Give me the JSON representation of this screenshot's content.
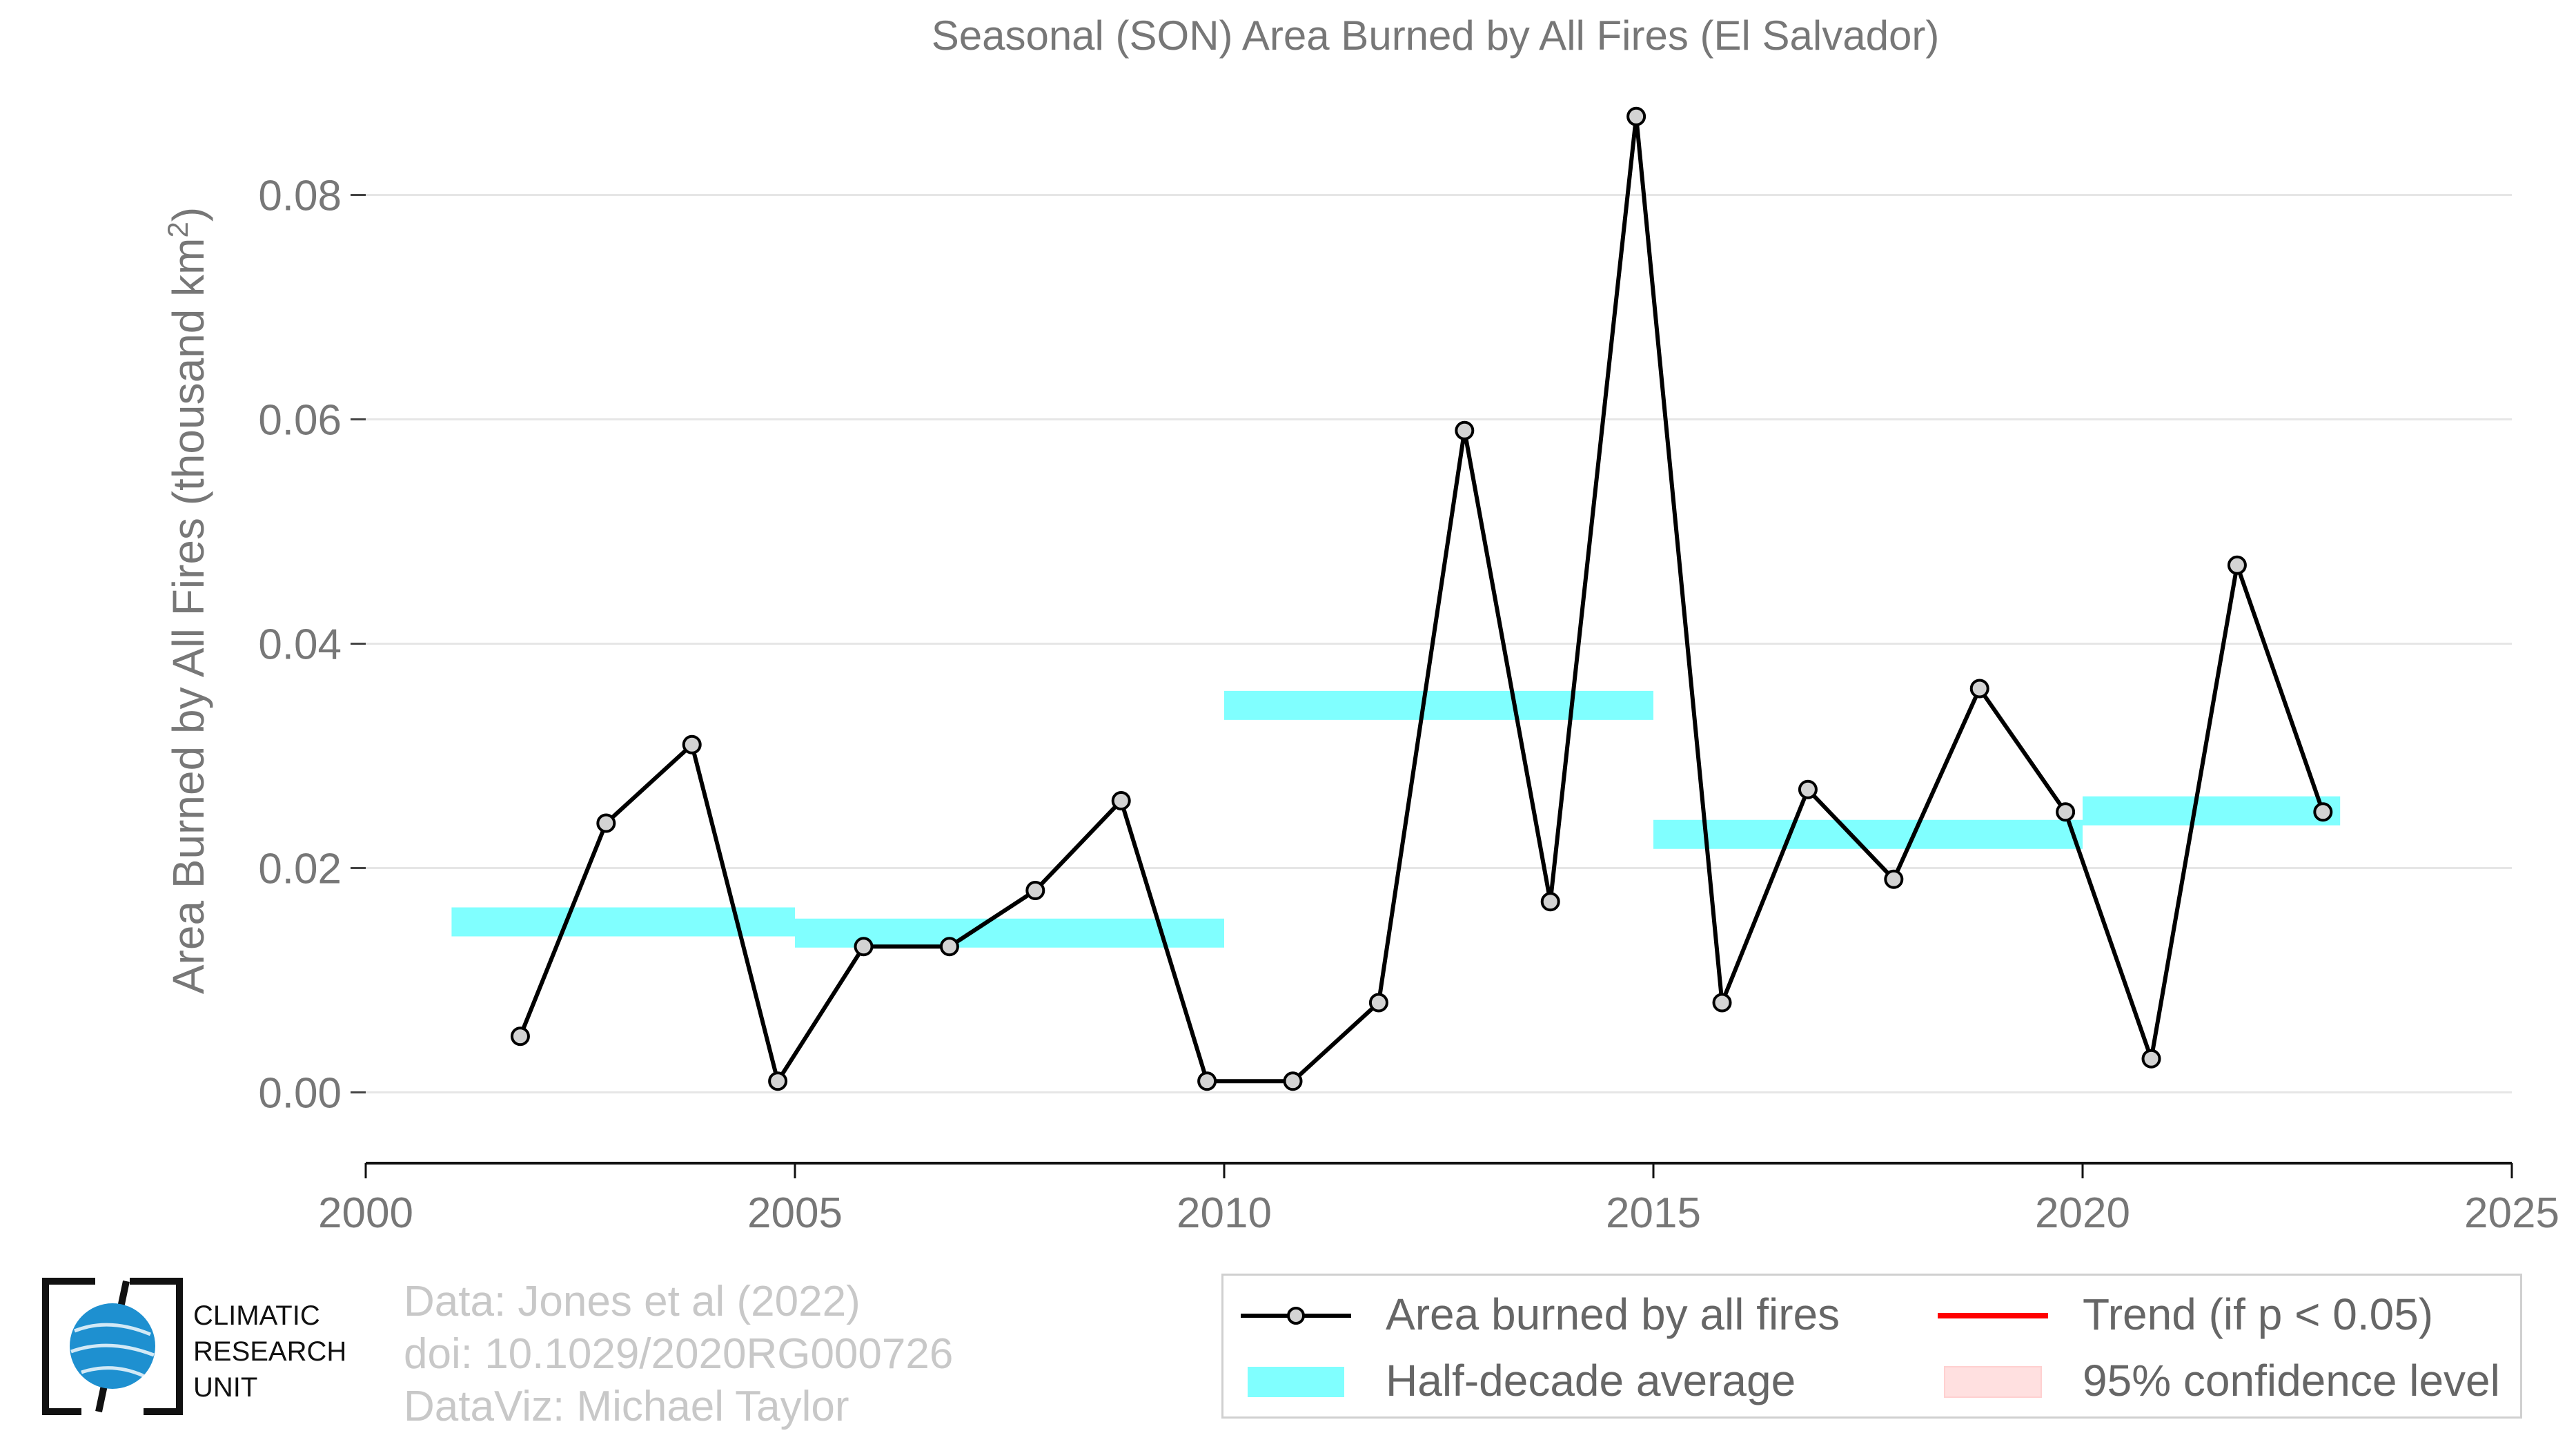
{
  "chart_data": {
    "type": "line",
    "title": "Seasonal (SON) Area Burned by All Fires (El Salvador)",
    "ylabel": "Area Burned by All Fires (thousand km²)",
    "xlabel": "",
    "xlim": [
      2000,
      2025
    ],
    "ylim": [
      -0.006,
      0.09
    ],
    "x_ticks": [
      2000,
      2005,
      2010,
      2015,
      2020,
      2025
    ],
    "y_ticks": [
      0.0,
      0.02,
      0.04,
      0.06,
      0.08
    ],
    "y_tick_labels": [
      "0.00",
      "0.02",
      "0.04",
      "0.06",
      "0.08"
    ],
    "grid": true,
    "series": [
      {
        "name": "Area burned by all fires",
        "color": "#000000",
        "marker_fill": "#d3d3d3",
        "x": [
          2001.8,
          2002.8,
          2003.8,
          2004.8,
          2005.8,
          2006.8,
          2007.8,
          2008.8,
          2009.8,
          2010.8,
          2011.8,
          2012.8,
          2013.8,
          2014.8,
          2015.8,
          2016.8,
          2017.8,
          2018.8,
          2019.8,
          2020.8,
          2021.8,
          2022.8
        ],
        "y": [
          0.005,
          0.024,
          0.031,
          0.001,
          0.013,
          0.013,
          0.018,
          0.026,
          0.001,
          0.001,
          0.008,
          0.059,
          0.017,
          0.087,
          0.008,
          0.027,
          0.019,
          0.036,
          0.025,
          0.003,
          0.047,
          0.025
        ]
      }
    ],
    "half_decade_average": {
      "name": "Half-decade average",
      "color": "#80ffff",
      "segments": [
        {
          "x0": 2001,
          "x1": 2005,
          "y": 0.0152
        },
        {
          "x0": 2005,
          "x1": 2010,
          "y": 0.0142
        },
        {
          "x0": 2010,
          "x1": 2015,
          "y": 0.0345
        },
        {
          "x0": 2015,
          "x1": 2020,
          "y": 0.023
        },
        {
          "x0": 2020,
          "x1": 2023,
          "y": 0.0251
        }
      ]
    }
  },
  "legend": {
    "placement": "bottom-right",
    "items": [
      {
        "label": "Area burned by all fires",
        "kind": "line-marker",
        "color": "#000000"
      },
      {
        "label": "Trend (if p < 0.05)",
        "kind": "line",
        "color": "#ff0000"
      },
      {
        "label": "Half-decade average",
        "kind": "band",
        "color": "#80ffff"
      },
      {
        "label": "95% confidence level",
        "kind": "band",
        "color": "#ffe0e0"
      }
    ]
  },
  "credits": {
    "line1": "Data: Jones et al (2022)",
    "line2": "doi: 10.1029/2020RG000726",
    "line3": "DataViz: Michael Taylor"
  },
  "logo": {
    "line1": "CLIMATIC",
    "line2": "RESEARCH",
    "line3": "UNIT",
    "globe_color": "#1e90d0"
  }
}
